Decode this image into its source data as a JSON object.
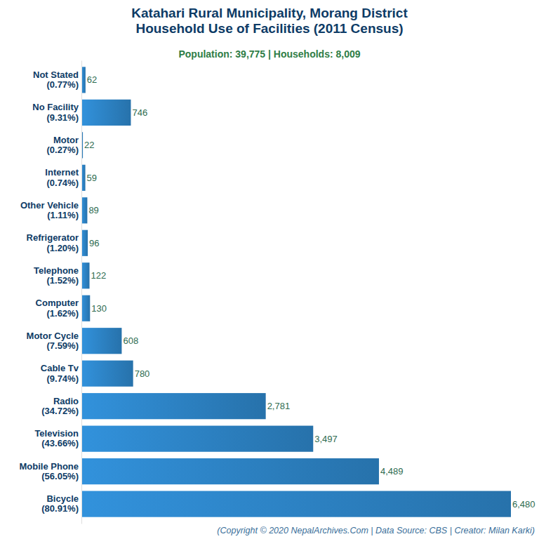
{
  "chart_data": {
    "type": "bar",
    "orientation": "horizontal",
    "title": "Katahari Rural Municipality, Morang District\nHousehold Use of Facilities (2011 Census)",
    "subtitle": "Population: 39,775 | Households: 8,009",
    "annotations": [
      "(Copyright © 2020 NepalArchives.Com | Data Source: CBS | Creator: Milan Karki)"
    ],
    "categories": [
      "Not Stated\n(0.77%)",
      "No Facility\n(9.31%)",
      "Motor\n(0.27%)",
      "Internet\n(0.74%)",
      "Other Vehicle\n(1.11%)",
      "Refrigerator\n(1.20%)",
      "Telephone\n(1.52%)",
      "Computer\n(1.62%)",
      "Motor Cycle\n(7.59%)",
      "Cable Tv\n(9.74%)",
      "Radio\n(34.72%)",
      "Television\n(43.66%)",
      "Mobile Phone\n(56.05%)",
      "Bicycle\n(80.91%)"
    ],
    "values": [
      62,
      746,
      22,
      59,
      89,
      96,
      122,
      130,
      608,
      780,
      2781,
      3497,
      4489,
      6480
    ],
    "value_labels": [
      "62",
      "746",
      "22",
      "59",
      "89",
      "96",
      "122",
      "130",
      "608",
      "780",
      "2,781",
      "3,497",
      "4,489",
      "6,480"
    ],
    "color": "#2e86c9",
    "xlim": [
      0,
      6480
    ],
    "data_labels": true,
    "tick_labels": "y",
    "grid": false
  }
}
